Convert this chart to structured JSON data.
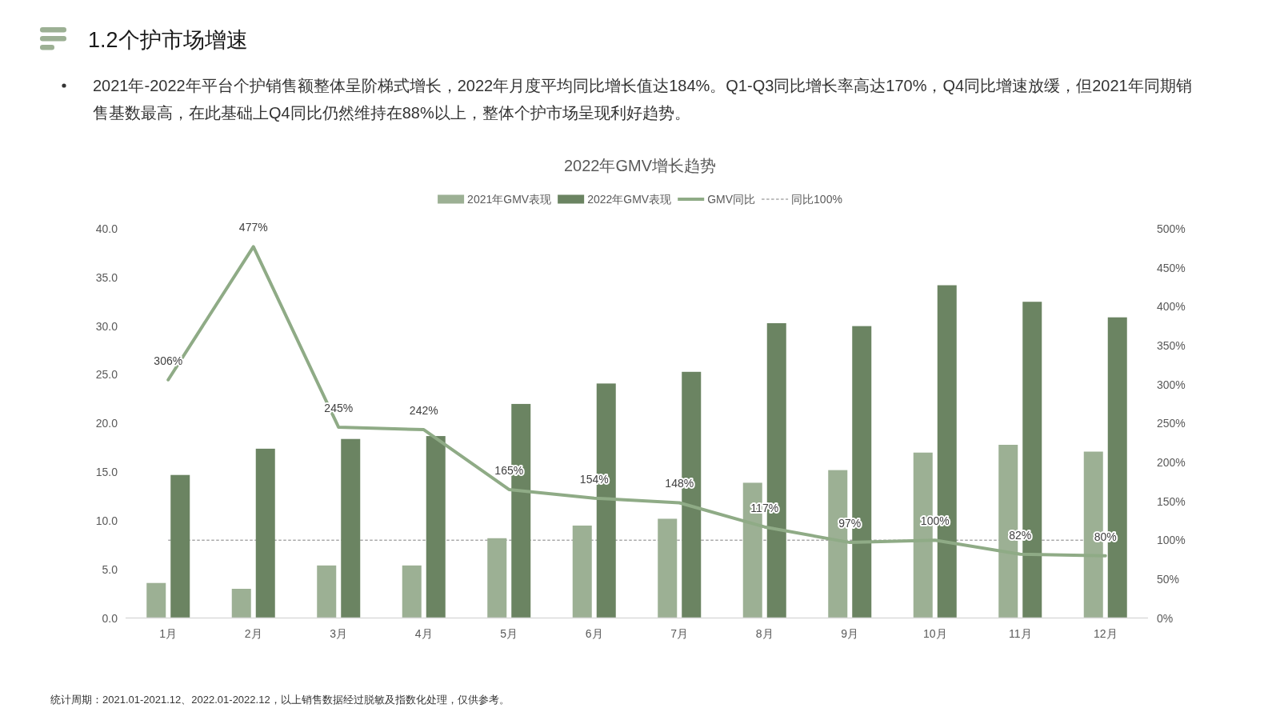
{
  "chart_data": {
    "type": "bar",
    "title": "2022年GMV增长趋势",
    "categories": [
      "1月",
      "2月",
      "3月",
      "4月",
      "5月",
      "6月",
      "7月",
      "8月",
      "9月",
      "10月",
      "11月",
      "12月"
    ],
    "series": [
      {
        "name": "2021年GMV表现",
        "color": "#9cb094",
        "values": [
          3.6,
          3.0,
          5.4,
          5.4,
          8.2,
          9.5,
          10.2,
          13.9,
          15.2,
          17.0,
          17.8,
          17.1
        ]
      },
      {
        "name": "2022年GMV表现",
        "color": "#6b8462",
        "values": [
          14.7,
          17.4,
          18.4,
          18.7,
          22.0,
          24.1,
          25.3,
          30.3,
          30.0,
          34.2,
          32.5,
          30.9
        ]
      },
      {
        "name": "GMV同比",
        "type": "line",
        "axis": "y2",
        "color": "#8fab86",
        "values": [
          306,
          477,
          245,
          242,
          165,
          154,
          148,
          117,
          97,
          100,
          82,
          80
        ],
        "value_labels": [
          "306%",
          "477%",
          "245%",
          "242%",
          "165%",
          "154%",
          "148%",
          "117%",
          "97%",
          "100%",
          "82%",
          "80%"
        ]
      }
    ],
    "ylim": [
      0,
      40
    ],
    "yticks": [
      {
        "value": 0,
        "label": "0.0"
      },
      {
        "value": 5,
        "label": "5.0"
      },
      {
        "value": 10,
        "label": "10.0"
      },
      {
        "value": 15,
        "label": "15.0"
      },
      {
        "value": 20,
        "label": "20.0"
      },
      {
        "value": 25,
        "label": "25.0"
      },
      {
        "value": 30,
        "label": "30.0"
      },
      {
        "value": 35,
        "label": "35.0"
      },
      {
        "value": 40,
        "label": "40.0"
      }
    ],
    "y2lim": [
      0,
      500
    ],
    "y2ticks": [
      {
        "value": 0,
        "label": "0%"
      },
      {
        "value": 50,
        "label": "50%"
      },
      {
        "value": 100,
        "label": "100%"
      },
      {
        "value": 150,
        "label": "150%"
      },
      {
        "value": 200,
        "label": "200%"
      },
      {
        "value": 250,
        "label": "250%"
      },
      {
        "value": 300,
        "label": "300%"
      },
      {
        "value": 350,
        "label": "350%"
      },
      {
        "value": 400,
        "label": "400%"
      },
      {
        "value": 450,
        "label": "450%"
      },
      {
        "value": 500,
        "label": "500%"
      }
    ],
    "ref_lines": [
      {
        "axis": "y2",
        "value": 100,
        "label": "同比100%",
        "color": "#7f7f7f",
        "line_style": "dashed"
      }
    ],
    "legend": "top",
    "annotations": [
      "1.2个护市场增速",
      "2021年-2022年平台个护销售额整体呈阶梯式增长，2022年月度平均同比增长值达184%。Q1-Q3同比增长率高达170%，Q4同比增速放缓，但2021年同期销售基数最高，在此基础上Q4同比仍然维持在88%以上，整体个护市场呈现利好趋势。",
      "统计周期：2021.01-2021.12、2022.01-2022.12，以上销售数据经过脱敏及指数化处理，仅供参考。"
    ]
  }
}
